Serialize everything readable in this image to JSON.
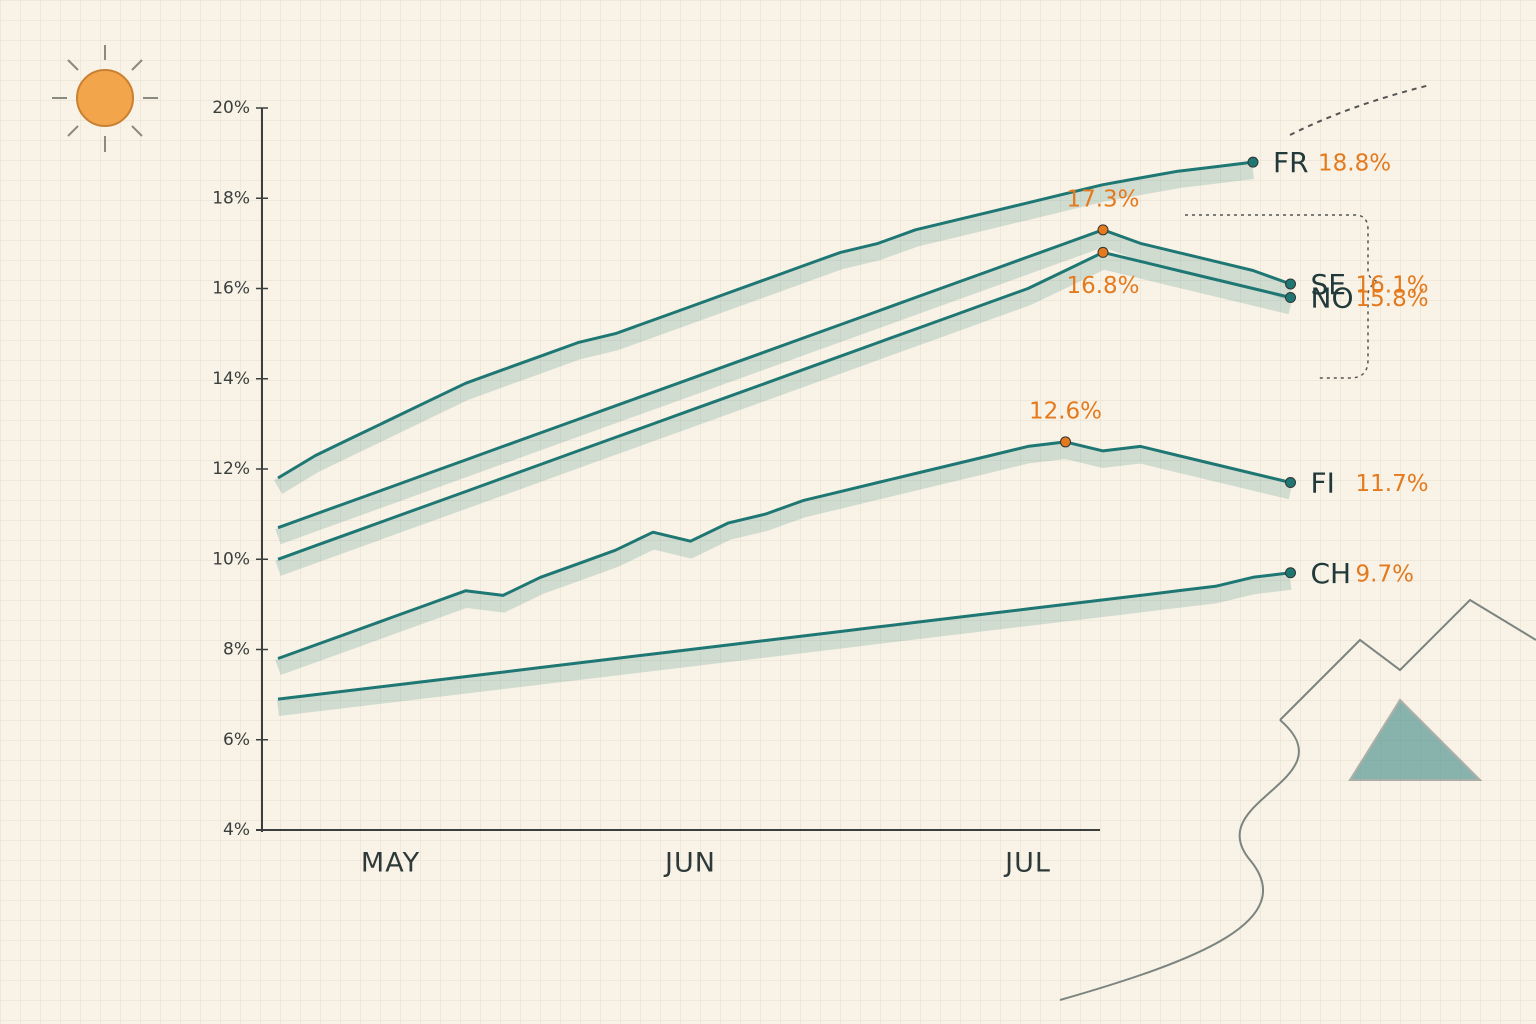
{
  "chart_data": {
    "type": "line",
    "categories": [
      null,
      null,
      null,
      "MAY",
      null,
      null,
      null,
      null,
      null,
      null,
      null,
      "JUN",
      null,
      null,
      null,
      null,
      null,
      null,
      null,
      null,
      "JUL",
      null,
      null,
      null,
      null,
      null,
      null,
      null
    ],
    "ylim": [
      4,
      20
    ],
    "yticks": [
      {
        "value": 4,
        "label": "4%"
      },
      {
        "value": 6,
        "label": "6%"
      },
      {
        "value": 8,
        "label": "8%"
      },
      {
        "value": 10,
        "label": "10%"
      },
      {
        "value": 12,
        "label": "12%"
      },
      {
        "value": 14,
        "label": "14%"
      },
      {
        "value": 16,
        "label": "16%"
      },
      {
        "value": 18,
        "label": "18%"
      },
      {
        "value": 20,
        "label": "20%"
      }
    ],
    "line_color": "#1f7774",
    "label_color": "#e47a1e",
    "series": [
      {
        "name": "FR",
        "color": "#1f7774",
        "values": [
          11.8,
          12.3,
          12.7,
          13.1,
          13.5,
          13.9,
          14.2,
          14.5,
          14.8,
          15.0,
          15.3,
          15.6,
          15.9,
          16.2,
          16.5,
          16.8,
          17.0,
          17.3,
          17.5,
          17.7,
          17.9,
          18.1,
          18.3,
          18.45,
          18.6,
          18.7,
          18.8,
          null
        ],
        "value_labels": [
          null,
          null,
          null,
          null,
          null,
          null,
          null,
          null,
          null,
          null,
          null,
          null,
          null,
          null,
          null,
          null,
          null,
          null,
          null,
          null,
          null,
          null,
          null,
          null,
          null,
          null,
          "18.8%",
          null
        ]
      },
      {
        "name": "SE",
        "color": "#1f7774",
        "values": [
          10.7,
          11.0,
          11.3,
          11.6,
          11.9,
          12.2,
          12.5,
          12.8,
          13.1,
          13.4,
          13.7,
          14.0,
          14.3,
          14.6,
          14.9,
          15.2,
          15.5,
          15.8,
          16.1,
          16.4,
          16.7,
          17.0,
          17.3,
          17.0,
          16.8,
          16.6,
          16.4,
          16.1
        ],
        "value_labels": [
          null,
          null,
          null,
          null,
          null,
          null,
          null,
          null,
          null,
          null,
          null,
          null,
          null,
          null,
          null,
          null,
          null,
          null,
          null,
          null,
          null,
          null,
          "17.3%",
          null,
          null,
          null,
          null,
          "16.1%"
        ]
      },
      {
        "name": "NO",
        "color": "#1f7774",
        "values": [
          10.0,
          10.3,
          10.6,
          10.9,
          11.2,
          11.5,
          11.8,
          12.1,
          12.4,
          12.7,
          13.0,
          13.3,
          13.6,
          13.9,
          14.2,
          14.5,
          14.8,
          15.1,
          15.4,
          15.7,
          16.0,
          16.4,
          16.8,
          16.6,
          16.4,
          16.2,
          16.0,
          15.8
        ],
        "value_labels": [
          null,
          null,
          null,
          null,
          null,
          null,
          null,
          null,
          null,
          null,
          null,
          null,
          null,
          null,
          null,
          null,
          null,
          null,
          null,
          null,
          null,
          null,
          "16.8%",
          null,
          null,
          null,
          null,
          "15.8%"
        ]
      },
      {
        "name": "FI",
        "color": "#1f7774",
        "values": [
          7.8,
          8.1,
          8.4,
          8.7,
          9.0,
          9.3,
          9.2,
          9.6,
          9.9,
          10.2,
          10.6,
          10.4,
          10.8,
          11.0,
          11.3,
          11.5,
          11.7,
          11.9,
          12.1,
          12.3,
          12.5,
          12.6,
          12.4,
          12.5,
          12.3,
          12.1,
          11.9,
          11.7
        ],
        "value_labels": [
          null,
          null,
          null,
          null,
          null,
          null,
          null,
          null,
          null,
          null,
          null,
          null,
          null,
          null,
          null,
          null,
          null,
          null,
          null,
          null,
          null,
          "12.6%",
          null,
          null,
          null,
          null,
          null,
          "11.7%"
        ]
      },
      {
        "name": "CH",
        "color": "#1f7774",
        "values": [
          6.9,
          7.0,
          7.1,
          7.2,
          7.3,
          7.4,
          7.5,
          7.6,
          7.7,
          7.8,
          7.9,
          8.0,
          8.1,
          8.2,
          8.3,
          8.4,
          8.5,
          8.6,
          8.7,
          8.8,
          8.9,
          9.0,
          9.1,
          9.2,
          9.3,
          9.4,
          9.6,
          9.7
        ],
        "value_labels": [
          null,
          null,
          null,
          null,
          null,
          null,
          null,
          null,
          null,
          null,
          null,
          null,
          null,
          null,
          null,
          null,
          null,
          null,
          null,
          null,
          null,
          null,
          null,
          null,
          null,
          null,
          null,
          "9.7%"
        ]
      }
    ]
  }
}
